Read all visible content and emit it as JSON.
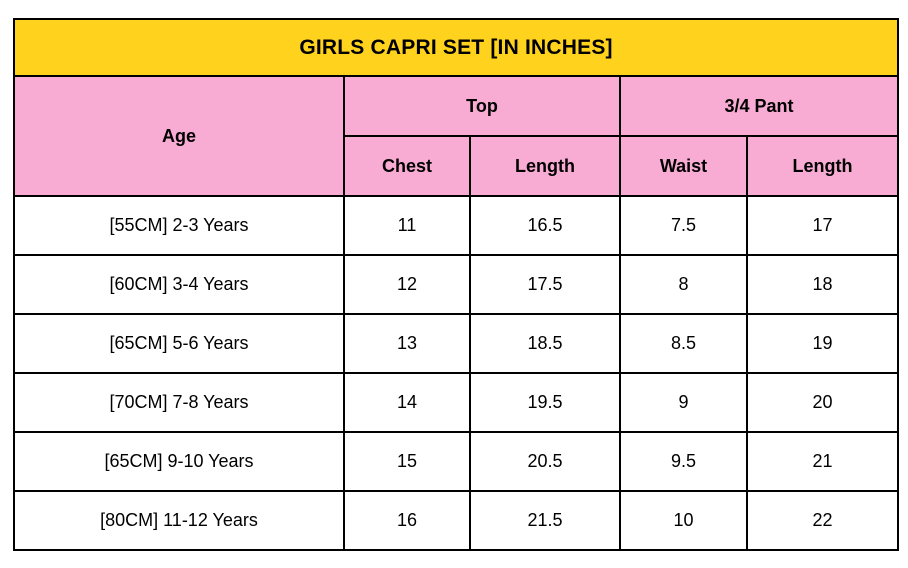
{
  "title": "GIRLS CAPRI SET [IN INCHES]",
  "colors": {
    "title_bg": "#FFD21E",
    "header_bg": "#F8ABD3",
    "border": "#000000",
    "row_bg": "#FFFFFF",
    "text": "#000000"
  },
  "table": {
    "age_header": "Age",
    "groups": [
      {
        "label": "Top"
      },
      {
        "label": "3/4 Pant"
      }
    ],
    "subcolumns": [
      "Chest",
      "Length",
      "Waist",
      "Length"
    ],
    "rows": [
      [
        "[55CM] 2-3 Years",
        "11",
        "16.5",
        "7.5",
        "17"
      ],
      [
        "[60CM] 3-4 Years",
        "12",
        "17.5",
        "8",
        "18"
      ],
      [
        "[65CM] 5-6 Years",
        "13",
        "18.5",
        "8.5",
        "19"
      ],
      [
        "[70CM] 7-8 Years",
        "14",
        "19.5",
        "9",
        "20"
      ],
      [
        "[65CM] 9-10 Years",
        "15",
        "20.5",
        "9.5",
        "21"
      ],
      [
        "[80CM] 11-12 Years",
        "16",
        "21.5",
        "10",
        "22"
      ]
    ]
  },
  "chart_data": {
    "type": "table",
    "title": "GIRLS CAPRI SET [IN INCHES]",
    "columns": [
      "Age",
      "Top Chest",
      "Top Length",
      "3/4 Pant Waist",
      "3/4 Pant Length"
    ],
    "rows": [
      [
        "[55CM] 2-3 Years",
        11,
        16.5,
        7.5,
        17
      ],
      [
        "[60CM] 3-4 Years",
        12,
        17.5,
        8,
        18
      ],
      [
        "[65CM] 5-6 Years",
        13,
        18.5,
        8.5,
        19
      ],
      [
        "[70CM] 7-8 Years",
        14,
        19.5,
        9,
        20
      ],
      [
        "[65CM] 9-10 Years",
        15,
        20.5,
        9.5,
        21
      ],
      [
        "[80CM] 11-12 Years",
        16,
        21.5,
        10,
        22
      ]
    ],
    "units": "inches"
  }
}
